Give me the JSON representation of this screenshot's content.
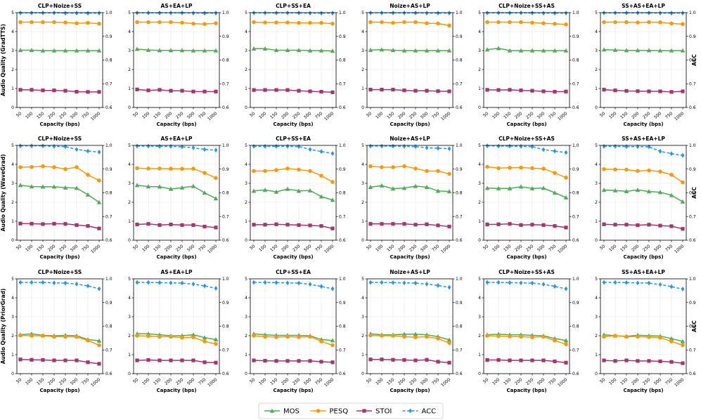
{
  "chart_data": {
    "type": "line",
    "grid": true,
    "categories": [
      "50",
      "100",
      "150",
      "200",
      "250",
      "500",
      "750",
      "1000"
    ],
    "xlabel": "Capacity (bps)",
    "ylabel_right": "ACC",
    "ylim_left": [
      0,
      5
    ],
    "ylim_right": [
      0.6,
      1.0
    ],
    "left_ticks": [
      "0",
      "1",
      "2",
      "3",
      "4",
      "5"
    ],
    "right_ticks": [
      "0.6",
      "0.7",
      "0.8",
      "0.9",
      "1.0"
    ],
    "panel_titles": [
      "CLP+Noize+SS",
      "AS+EA+LP",
      "CLP+SS+EA",
      "Noize+AS+LP",
      "CLP+Noize+SS+AS",
      "SS+AS+EA+LP"
    ],
    "legend": {
      "position": "bottom-center",
      "entries": [
        {
          "key": "mos",
          "label": "MOS",
          "color": "#4caf50",
          "marker": "triangle",
          "dash": "solid"
        },
        {
          "key": "pesq",
          "label": "PESQ",
          "color": "#ff9800",
          "marker": "circle",
          "dash": "solid"
        },
        {
          "key": "stoi",
          "label": "STOI",
          "color": "#a8336f",
          "marker": "square",
          "dash": "solid"
        },
        {
          "key": "acc",
          "label": "ACC",
          "color": "#2196f3",
          "marker": "diamond",
          "dash": "dashed"
        }
      ]
    },
    "rows": [
      {
        "ylabel": "Audio Quality (GradTTS)",
        "panels": [
          {
            "mos": [
              3.02,
              3.02,
              3.0,
              3.0,
              3.0,
              3.0,
              3.0,
              3.0
            ],
            "pesq": [
              4.5,
              4.5,
              4.5,
              4.5,
              4.48,
              4.44,
              4.46,
              4.42
            ],
            "stoi": [
              0.93,
              0.93,
              0.9,
              0.9,
              0.88,
              0.83,
              0.82,
              0.82
            ],
            "acc": [
              0.999,
              0.999,
              0.999,
              0.999,
              0.998,
              0.998,
              0.998,
              0.998
            ]
          },
          {
            "mos": [
              3.08,
              3.03,
              3.01,
              3.01,
              3.01,
              3.0,
              3.0,
              3.0
            ],
            "pesq": [
              4.5,
              4.5,
              4.5,
              4.5,
              4.47,
              4.42,
              4.4,
              4.44
            ],
            "stoi": [
              0.95,
              0.9,
              0.93,
              0.88,
              0.88,
              0.84,
              0.84,
              0.84
            ],
            "acc": [
              0.999,
              0.999,
              0.999,
              0.999,
              0.999,
              0.998,
              0.998,
              0.998
            ]
          },
          {
            "mos": [
              3.1,
              3.1,
              3.02,
              3.02,
              3.02,
              3.0,
              3.0,
              2.98
            ],
            "pesq": [
              4.5,
              4.48,
              4.48,
              4.48,
              4.46,
              4.46,
              4.46,
              4.42
            ],
            "stoi": [
              0.92,
              0.92,
              0.92,
              0.92,
              0.88,
              0.85,
              0.83,
              0.8
            ],
            "acc": [
              0.999,
              0.999,
              0.999,
              0.999,
              0.999,
              0.998,
              0.998,
              0.998
            ]
          },
          {
            "mos": [
              3.03,
              3.05,
              3.02,
              3.0,
              3.0,
              3.0,
              3.0,
              3.0
            ],
            "pesq": [
              4.5,
              4.5,
              4.46,
              4.5,
              4.5,
              4.44,
              4.43,
              4.32
            ],
            "stoi": [
              0.94,
              0.94,
              0.94,
              0.9,
              0.88,
              0.88,
              0.86,
              0.85
            ],
            "acc": [
              0.999,
              0.999,
              0.999,
              0.999,
              0.999,
              0.998,
              0.998,
              0.998
            ]
          },
          {
            "mos": [
              3.05,
              3.12,
              3.0,
              3.0,
              3.0,
              3.0,
              3.0,
              3.0
            ],
            "pesq": [
              4.5,
              4.5,
              4.5,
              4.5,
              4.47,
              4.44,
              4.41,
              4.38
            ],
            "stoi": [
              0.93,
              0.92,
              0.93,
              0.9,
              0.88,
              0.85,
              0.83,
              0.84
            ],
            "acc": [
              0.999,
              0.999,
              0.999,
              0.999,
              0.999,
              0.998,
              0.998,
              0.998
            ]
          },
          {
            "mos": [
              3.05,
              3.03,
              3.01,
              3.01,
              3.01,
              3.0,
              3.0,
              3.0
            ],
            "pesq": [
              4.5,
              4.5,
              4.5,
              4.48,
              4.5,
              4.49,
              4.43,
              4.4
            ],
            "stoi": [
              0.94,
              0.9,
              0.87,
              0.86,
              0.85,
              0.85,
              0.82,
              0.85
            ],
            "acc": [
              0.999,
              0.999,
              0.999,
              0.999,
              0.999,
              0.998,
              0.998,
              0.998
            ]
          }
        ]
      },
      {
        "ylabel": "Audio Quality (WaveGrad)",
        "panels": [
          {
            "mos": [
              2.9,
              2.83,
              2.82,
              2.82,
              2.77,
              2.75,
              2.4,
              2.0
            ],
            "pesq": [
              3.85,
              3.86,
              3.9,
              3.85,
              3.75,
              3.85,
              3.45,
              3.15
            ],
            "stoi": [
              0.88,
              0.87,
              0.85,
              0.87,
              0.86,
              0.8,
              0.75,
              0.62
            ],
            "acc": [
              0.998,
              0.998,
              0.998,
              0.996,
              0.995,
              0.983,
              0.976,
              0.972
            ]
          },
          {
            "mos": [
              2.9,
              2.83,
              2.82,
              2.7,
              2.77,
              2.85,
              2.5,
              2.2
            ],
            "pesq": [
              3.8,
              3.78,
              3.78,
              3.77,
              3.76,
              3.77,
              3.55,
              3.28
            ],
            "stoi": [
              0.83,
              0.86,
              0.8,
              0.83,
              0.8,
              0.8,
              0.72,
              0.67
            ],
            "acc": [
              0.997,
              0.997,
              0.996,
              0.996,
              0.994,
              0.99,
              0.983,
              0.98
            ]
          },
          {
            "mos": [
              2.6,
              2.65,
              2.55,
              2.7,
              2.6,
              2.62,
              2.3,
              2.12
            ],
            "pesq": [
              3.65,
              3.65,
              3.7,
              3.78,
              3.72,
              3.65,
              3.4,
              3.07
            ],
            "stoi": [
              0.82,
              0.82,
              0.84,
              0.82,
              0.8,
              0.78,
              0.75,
              0.62
            ],
            "acc": [
              0.996,
              0.996,
              0.996,
              0.996,
              0.995,
              0.983,
              0.974,
              0.966
            ]
          },
          {
            "mos": [
              2.8,
              2.88,
              2.72,
              2.75,
              2.85,
              2.8,
              2.6,
              2.57
            ],
            "pesq": [
              3.9,
              3.85,
              3.85,
              3.9,
              3.78,
              3.65,
              3.65,
              3.5
            ],
            "stoi": [
              0.86,
              0.86,
              0.86,
              0.86,
              0.82,
              0.84,
              0.78,
              0.72
            ],
            "acc": [
              0.997,
              0.997,
              0.997,
              0.996,
              0.995,
              0.99,
              0.988,
              0.986
            ]
          },
          {
            "mos": [
              2.75,
              2.73,
              2.73,
              2.82,
              2.73,
              2.75,
              2.5,
              2.25
            ],
            "pesq": [
              3.87,
              3.8,
              3.82,
              3.83,
              3.8,
              3.77,
              3.55,
              3.3
            ],
            "stoi": [
              0.83,
              0.84,
              0.86,
              0.8,
              0.82,
              0.8,
              0.75,
              0.67
            ],
            "acc": [
              0.998,
              0.997,
              0.997,
              0.996,
              0.995,
              0.982,
              0.976,
              0.97
            ]
          },
          {
            "mos": [
              2.65,
              2.62,
              2.58,
              2.65,
              2.57,
              2.53,
              2.37,
              2.03
            ],
            "pesq": [
              3.75,
              3.73,
              3.72,
              3.65,
              3.68,
              3.62,
              3.45,
              3.05
            ],
            "stoi": [
              0.84,
              0.82,
              0.82,
              0.79,
              0.82,
              0.77,
              0.74,
              0.6
            ],
            "acc": [
              0.996,
              0.996,
              0.995,
              0.995,
              0.994,
              0.975,
              0.965,
              0.958
            ]
          }
        ]
      },
      {
        "ylabel": "Audio Quality (PriorGrad)",
        "panels": [
          {
            "mos": [
              2.05,
              2.1,
              2.02,
              2.0,
              2.02,
              2.0,
              1.8,
              1.73
            ],
            "pesq": [
              2.02,
              2.0,
              2.0,
              1.95,
              1.95,
              1.94,
              1.75,
              1.5
            ],
            "stoi": [
              0.75,
              0.73,
              0.72,
              0.7,
              0.7,
              0.7,
              0.6,
              0.52
            ],
            "acc": [
              0.985,
              0.985,
              0.985,
              0.983,
              0.982,
              0.978,
              0.97,
              0.958
            ]
          },
          {
            "mos": [
              2.1,
              2.1,
              2.05,
              2.0,
              2.0,
              2.05,
              1.9,
              1.8
            ],
            "pesq": [
              2.0,
              1.98,
              1.95,
              1.95,
              1.9,
              1.92,
              1.7,
              1.57
            ],
            "stoi": [
              0.7,
              0.72,
              0.7,
              0.7,
              0.7,
              0.7,
              0.6,
              0.58
            ],
            "acc": [
              0.985,
              0.985,
              0.984,
              0.983,
              0.982,
              0.978,
              0.97,
              0.96
            ]
          },
          {
            "mos": [
              2.1,
              2.05,
              2.02,
              2.02,
              2.02,
              2.0,
              1.8,
              1.75
            ],
            "pesq": [
              2.0,
              1.95,
              1.93,
              1.95,
              1.93,
              1.95,
              1.7,
              1.5
            ],
            "stoi": [
              0.7,
              0.68,
              0.67,
              0.67,
              0.67,
              0.67,
              0.63,
              0.6
            ],
            "acc": [
              0.985,
              0.985,
              0.984,
              0.983,
              0.982,
              0.977,
              0.968,
              0.958
            ]
          },
          {
            "mos": [
              2.1,
              2.05,
              2.05,
              2.08,
              2.08,
              2.05,
              1.95,
              1.78
            ],
            "pesq": [
              2.02,
              2.0,
              2.0,
              1.95,
              1.92,
              1.95,
              1.85,
              1.62
            ],
            "stoi": [
              0.75,
              0.75,
              0.73,
              0.72,
              0.7,
              0.73,
              0.63,
              0.58
            ],
            "acc": [
              0.985,
              0.985,
              0.984,
              0.983,
              0.982,
              0.978,
              0.972,
              0.964
            ]
          },
          {
            "mos": [
              2.05,
              2.08,
              2.05,
              2.05,
              2.02,
              2.0,
              1.85,
              1.75
            ],
            "pesq": [
              2.0,
              1.98,
              1.96,
              1.95,
              1.92,
              1.95,
              1.75,
              1.55
            ],
            "stoi": [
              0.72,
              0.72,
              0.7,
              0.7,
              0.7,
              0.7,
              0.65,
              0.58
            ],
            "acc": [
              0.985,
              0.985,
              0.984,
              0.983,
              0.982,
              0.977,
              0.968,
              0.958
            ]
          },
          {
            "mos": [
              2.05,
              2.0,
              1.97,
              2.03,
              2.0,
              1.98,
              1.85,
              1.7
            ],
            "pesq": [
              1.95,
              2.0,
              1.95,
              1.95,
              1.93,
              1.9,
              1.7,
              1.5
            ],
            "stoi": [
              0.7,
              0.67,
              0.7,
              0.67,
              0.67,
              0.65,
              0.62,
              0.55
            ],
            "acc": [
              0.985,
              0.985,
              0.984,
              0.983,
              0.982,
              0.976,
              0.967,
              0.957
            ]
          }
        ]
      }
    ]
  }
}
